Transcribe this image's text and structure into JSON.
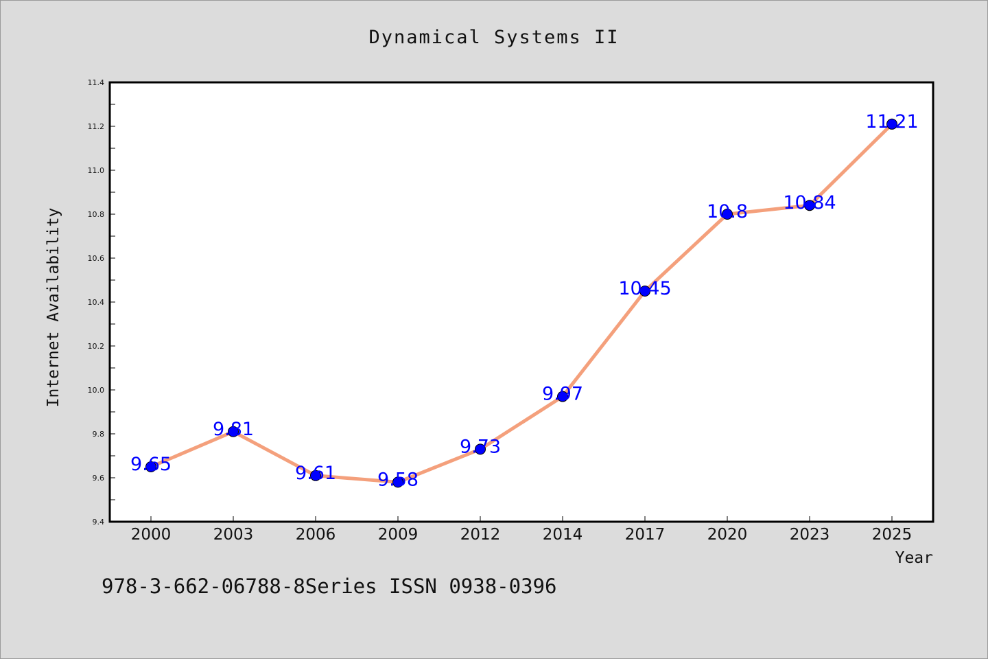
{
  "chart_data": {
    "type": "line",
    "title": "Dynamical Systems II",
    "xlabel": "Year",
    "ylabel": "Internet Availability",
    "categories": [
      "2000",
      "2003",
      "2006",
      "2009",
      "2012",
      "2014",
      "2017",
      "2020",
      "2023",
      "2025"
    ],
    "series": [
      {
        "values": [
          9.65,
          9.81,
          9.61,
          9.58,
          9.73,
          9.97,
          10.45,
          10.8,
          10.84,
          11.21
        ],
        "data_labels": [
          "9.65",
          "9.81",
          "9.61",
          "9.58",
          "9.73",
          "9.97",
          "10.45",
          "10.8",
          "10.84",
          "11.21"
        ],
        "line_color": "#f4a07c",
        "marker_color": "#0000ff",
        "label_color": "#0000ff"
      }
    ],
    "ylim": [
      9.4,
      11.4
    ],
    "yticks": [
      "9.4",
      "9.6",
      "9.8",
      "10.0",
      "10.2",
      "10.4",
      "10.6",
      "10.8",
      "11.0",
      "11.2",
      "11.4"
    ],
    "grid": false,
    "legend": "none"
  },
  "footer": {
    "text": "978-3-662-06788-8Series ISSN 0938-0396"
  },
  "colors": {
    "background": "#dcdcdc",
    "plot_background": "#ffffff",
    "axis": "#000000"
  }
}
